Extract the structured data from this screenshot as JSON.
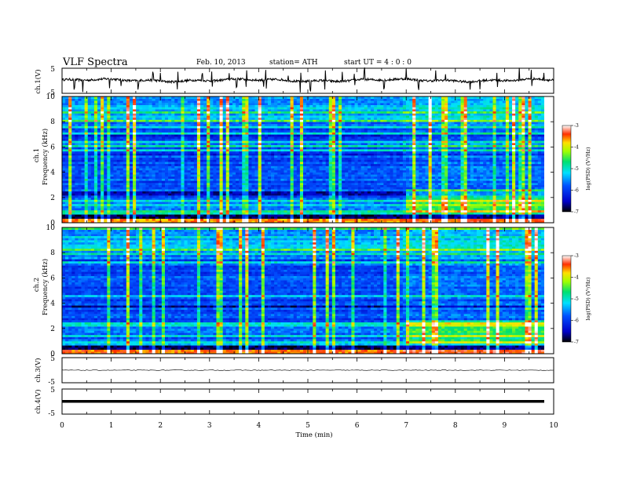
{
  "header": {
    "title": "VLF  Spectra",
    "date": "Feb. 10, 2013",
    "station": "station= ATH",
    "start": "start  UT  =   4  : 0  : 0"
  },
  "chart_data": [
    {
      "type": "line",
      "panel": "ch1-waveform",
      "ylabel": "ch.1(V)",
      "yticks": [
        "5",
        "-5"
      ],
      "ylim": [
        -5,
        5
      ],
      "baseline": 0.2,
      "spikes_min": [
        0.25,
        0.42,
        0.97,
        1.2,
        1.55,
        1.85,
        2.0,
        2.35,
        2.85,
        3.05,
        3.4,
        3.55,
        3.75,
        4.1,
        4.15,
        4.6,
        4.85,
        5.05,
        5.35,
        5.7,
        5.95,
        6.15,
        6.55,
        7.0,
        7.25,
        7.6,
        7.8,
        8.3,
        8.5,
        8.85,
        9.3,
        9.55,
        9.8
      ]
    },
    {
      "type": "heatmap",
      "panel": "ch1-spectrogram",
      "ylabel": "ch.1\nFrequency (kHz)",
      "xlim": [
        0,
        9.82
      ],
      "ylim": [
        0,
        10
      ],
      "yticks": [
        "0",
        "2",
        "4",
        "6",
        "8",
        "10"
      ],
      "colorbar": {
        "label": "log(PSD) (V²/Hz)",
        "range": [
          -7,
          -3
        ],
        "ticks": [
          "-3",
          "-4",
          "-5",
          "-6",
          "-7"
        ]
      }
    },
    {
      "type": "heatmap",
      "panel": "ch2-spectrogram",
      "ylabel": "ch.2\nFrequency (kHz)",
      "xlim": [
        0,
        9.82
      ],
      "ylim": [
        0,
        10
      ],
      "yticks": [
        "0",
        "2",
        "4",
        "6",
        "8",
        "10"
      ],
      "colorbar": {
        "label": "log(PSD) (V²/Hz)",
        "range": [
          -7,
          -3
        ],
        "ticks": [
          "-3",
          "-4",
          "-5",
          "-6",
          "-7"
        ]
      }
    },
    {
      "type": "line",
      "panel": "ch3-waveform",
      "ylabel": "ch.3(V)",
      "yticks": [
        "5",
        "-5"
      ],
      "ylim": [
        -5,
        5
      ],
      "baseline": 0
    },
    {
      "type": "line",
      "panel": "ch4-waveform",
      "ylabel": "ch.4(V)",
      "yticks": [
        "5",
        "-5"
      ],
      "ylim": [
        -5,
        5
      ],
      "baseline": 0
    },
    {
      "type": "axis",
      "xlabel": "Time  (min)",
      "xlim": [
        0,
        10
      ],
      "xticks": [
        "0",
        "1",
        "2",
        "3",
        "4",
        "5",
        "6",
        "7",
        "8",
        "9",
        "10"
      ]
    }
  ]
}
